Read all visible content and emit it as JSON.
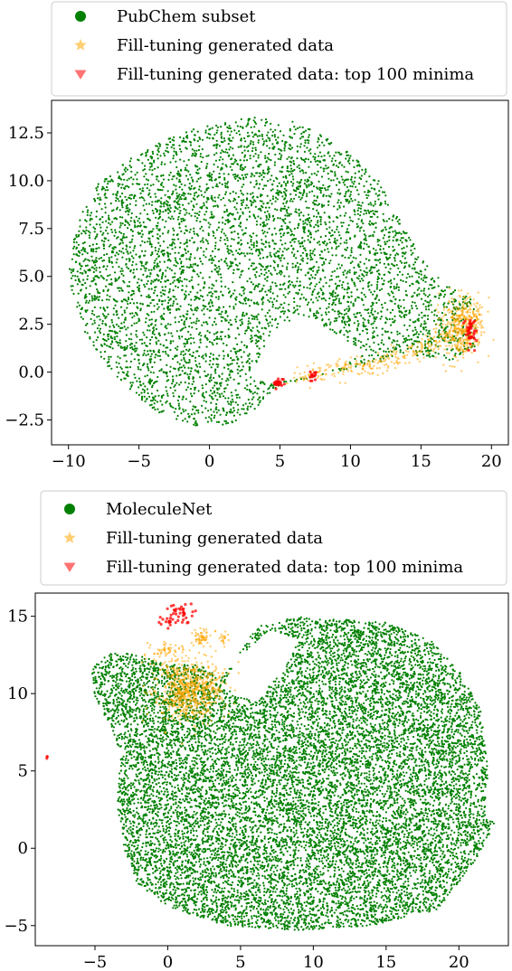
{
  "chart_data": [
    {
      "type": "scatter",
      "title": "",
      "xlabel": "",
      "ylabel": "",
      "xlim": [
        -11.2,
        21.2
      ],
      "ylim": [
        -3.8,
        14.2
      ],
      "x_ticks": [
        -10,
        -5,
        0,
        5,
        10,
        15,
        20
      ],
      "x_tick_labels": [
        "−10",
        "−5",
        "0",
        "5",
        "10",
        "15",
        "20"
      ],
      "y_ticks": [
        -2.5,
        0.0,
        2.5,
        5.0,
        7.5,
        10.0,
        12.5
      ],
      "y_tick_labels": [
        "−2.5",
        "0.0",
        "2.5",
        "5.0",
        "7.5",
        "10.0",
        "12.5"
      ],
      "grid": false,
      "legend_position": "top-center (above plot)",
      "series": [
        {
          "name": "PubChem subset",
          "marker": "circle",
          "color": "#008000",
          "approx_extent": {
            "x": [
              -10,
              19
            ],
            "y": [
              -2.9,
              13.4
            ]
          }
        },
        {
          "name": "Fill-tuning generated data",
          "marker": "star",
          "color": "#ffa500",
          "approx_extent": {
            "x": [
              2,
              19
            ],
            "y": [
              -1,
              4
            ]
          }
        },
        {
          "name": "Fill-tuning generated data: top 100 minima",
          "marker": "triangle-down",
          "color": "#ff0000",
          "approx_extent": {
            "x": [
              4.5,
              18.7
            ],
            "y": [
              -0.8,
              2.5
            ]
          }
        }
      ]
    },
    {
      "type": "scatter",
      "title": "",
      "xlabel": "",
      "ylabel": "",
      "xlim": [
        -9.1,
        23.4
      ],
      "ylim": [
        -6.3,
        16.5
      ],
      "x_ticks": [
        -5,
        0,
        5,
        10,
        15,
        20
      ],
      "x_tick_labels": [
        "−5",
        "0",
        "5",
        "10",
        "15",
        "20"
      ],
      "y_ticks": [
        -5,
        0,
        5,
        10,
        15
      ],
      "y_tick_labels": [
        "−5",
        "0",
        "5",
        "10",
        "15"
      ],
      "grid": false,
      "legend_position": "top-center (above plot)",
      "series": [
        {
          "name": "MoleculeNet",
          "marker": "circle",
          "color": "#008000",
          "approx_extent": {
            "x": [
              -5.5,
              22.5
            ],
            "y": [
              -5.3,
              15
            ]
          }
        },
        {
          "name": "Fill-tuning generated data",
          "marker": "star",
          "color": "#ffa500",
          "approx_extent": {
            "x": [
              -2.5,
              4.2
            ],
            "y": [
              8.5,
              14
            ]
          }
        },
        {
          "name": "Fill-tuning generated data: top 100 minima",
          "marker": "triangle-down",
          "color": "#ff0000",
          "approx_extent": {
            "x": [
              -8.4,
              3.5
            ],
            "y": [
              5.8,
              15.6
            ]
          }
        }
      ]
    }
  ]
}
